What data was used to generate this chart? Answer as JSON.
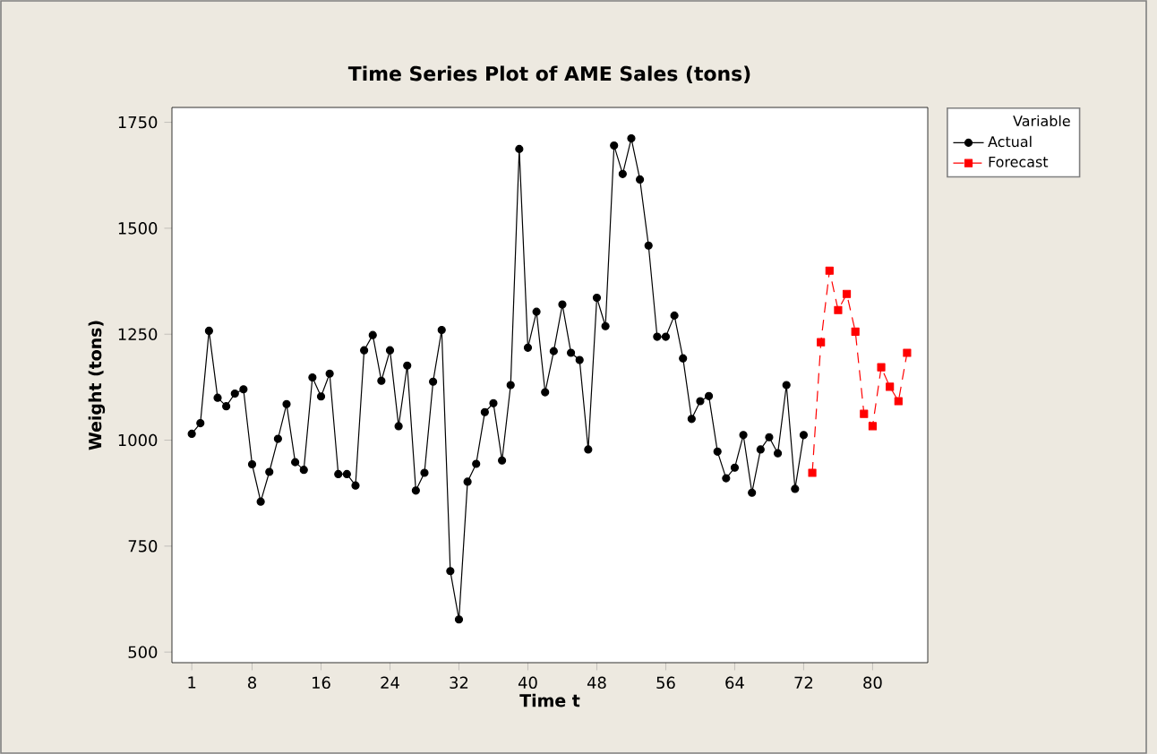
{
  "chart_data": {
    "type": "line",
    "title": "Time Series Plot of AME Sales (tons)",
    "xlabel": "Time t",
    "ylabel": "Weight (tons)",
    "legend_title": "Variable",
    "legend": "top right",
    "xlim": [
      -1.3,
      86.4
    ],
    "ylim": [
      475,
      1785
    ],
    "xticks": [
      1,
      8,
      16,
      24,
      32,
      40,
      48,
      56,
      64,
      72,
      80
    ],
    "yticks": [
      500,
      750,
      1000,
      1250,
      1500,
      1750
    ],
    "series": [
      {
        "name": "Actual",
        "color": "#000000",
        "marker": "circle",
        "line_style": "solid",
        "x": [
          1,
          2,
          3,
          4,
          5,
          6,
          7,
          8,
          9,
          10,
          11,
          12,
          13,
          14,
          15,
          16,
          17,
          18,
          19,
          20,
          21,
          22,
          23,
          24,
          25,
          26,
          27,
          28,
          29,
          30,
          31,
          32,
          33,
          34,
          35,
          36,
          37,
          38,
          39,
          40,
          41,
          42,
          43,
          44,
          45,
          46,
          47,
          48,
          49,
          50,
          51,
          52,
          53,
          54,
          55,
          56,
          57,
          58,
          59,
          60,
          61,
          62,
          63,
          64,
          65,
          66,
          67,
          68,
          69,
          70,
          71,
          72
        ],
        "values": [
          1015,
          1040,
          1258,
          1100,
          1080,
          1110,
          1120,
          943,
          855,
          925,
          1003,
          1085,
          948,
          930,
          1148,
          1103,
          1157,
          920,
          920,
          893,
          1212,
          1248,
          1140,
          1212,
          1033,
          1176,
          881,
          923,
          1138,
          1260,
          691,
          577,
          902,
          944,
          1066,
          1087,
          952,
          1130,
          1687,
          1218,
          1303,
          1113,
          1210,
          1320,
          1206,
          1189,
          978,
          1336,
          1269,
          1695,
          1628,
          1712,
          1615,
          1459,
          1244,
          1244,
          1294,
          1193,
          1050,
          1092,
          1104,
          973,
          910,
          935,
          1012,
          876,
          978,
          1007,
          969,
          1130,
          885,
          1012
        ]
      },
      {
        "name": "Forecast",
        "color": "#ff0000",
        "marker": "square",
        "line_style": "dashed",
        "x": [
          73,
          74,
          75,
          76,
          77,
          78,
          79,
          80,
          81,
          82,
          83,
          84
        ],
        "values": [
          923,
          1231,
          1400,
          1307,
          1345,
          1256,
          1062,
          1033,
          1172,
          1126,
          1092,
          1206
        ]
      }
    ]
  }
}
